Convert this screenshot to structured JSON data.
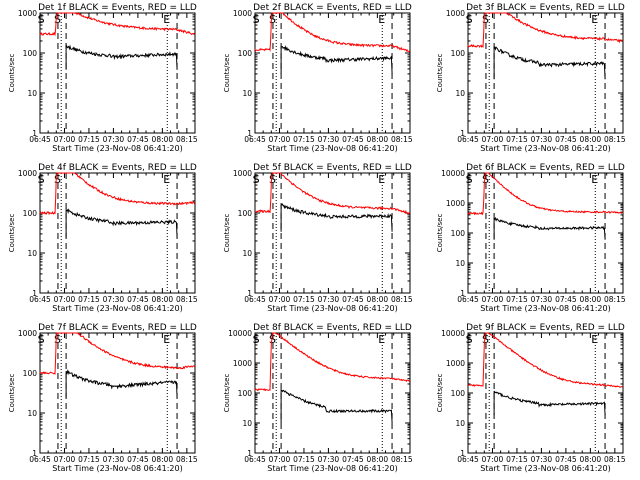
{
  "figure": {
    "background": "#ffffff"
  },
  "colors": {
    "events": "#000000",
    "lld": "#ff0000",
    "axes": "#000000"
  },
  "chart_data": [
    {
      "type": "line",
      "title": "Det 1f BLACK = Events, RED = LLD",
      "xlabel": "Start Time (23-Nov-08 06:41:20)",
      "ylabel": "Counts/sec",
      "xticks": [
        "06:45",
        "07:00",
        "07:15",
        "07:30",
        "07:45",
        "08:00",
        "08:15"
      ],
      "yticks": [
        "1",
        "10",
        "100",
        "1000"
      ],
      "ylim": [
        1,
        1000
      ],
      "yscale": "log",
      "markers": {
        "start": "S",
        "end": "E"
      },
      "lld": {
        "pre": 300,
        "jump": 1700,
        "decay_to": 380,
        "tau": 15,
        "post": 300
      },
      "events": {
        "start": 150,
        "end": 95,
        "dip": 80
      }
    },
    {
      "type": "line",
      "title": "Det 2f BLACK = Events, RED = LLD",
      "xlabel": "Start Time (23-Nov-08 06:41:20)",
      "ylabel": "Counts/sec",
      "xticks": [
        "06:45",
        "07:00",
        "07:15",
        "07:30",
        "07:45",
        "08:00",
        "08:15"
      ],
      "yticks": [
        "1",
        "10",
        "100",
        "1000"
      ],
      "ylim": [
        1,
        1000
      ],
      "yscale": "log",
      "markers": {
        "start": "S",
        "end": "E"
      },
      "lld": {
        "pre": 120,
        "jump": 1700,
        "decay_to": 150,
        "tau": 10,
        "post": 110
      },
      "events": {
        "start": 150,
        "end": 75,
        "dip": 65
      }
    },
    {
      "type": "line",
      "title": "Det 3f BLACK = Events, RED = LLD",
      "xlabel": "Start Time (23-Nov-08 06:41:20)",
      "ylabel": "Counts/sec",
      "xticks": [
        "06:45",
        "07:00",
        "07:15",
        "07:30",
        "07:45",
        "08:00",
        "08:15"
      ],
      "yticks": [
        "1",
        "10",
        "100",
        "1000"
      ],
      "ylim": [
        1,
        1000
      ],
      "yscale": "log",
      "markers": {
        "start": "S",
        "end": "E"
      },
      "lld": {
        "pre": 150,
        "jump": 2500,
        "decay_to": 220,
        "tau": 12,
        "post": 200
      },
      "events": {
        "start": 140,
        "end": 55,
        "dip": 50
      }
    },
    {
      "type": "line",
      "title": "Det 4f BLACK = Events, RED = LLD",
      "xlabel": "Start Time (23-Nov-08 06:41:20)",
      "ylabel": "Counts/sec",
      "xticks": [
        "06:45",
        "07:00",
        "07:15",
        "07:30",
        "07:45",
        "08:00",
        "08:15"
      ],
      "yticks": [
        "1",
        "10",
        "100",
        "1000"
      ],
      "ylim": [
        1,
        1000
      ],
      "yscale": "log",
      "markers": {
        "start": "S",
        "end": "E"
      },
      "lld": {
        "pre": 100,
        "jump": 2500,
        "decay_to": 170,
        "tau": 10,
        "post": 180
      },
      "events": {
        "start": 120,
        "end": 60,
        "dip": 55
      }
    },
    {
      "type": "line",
      "title": "Det 5f BLACK = Events, RED = LLD",
      "xlabel": "Start Time (23-Nov-08 06:41:20)",
      "ylabel": "Counts/sec",
      "xticks": [
        "06:45",
        "07:00",
        "07:15",
        "07:30",
        "07:45",
        "08:00",
        "08:15"
      ],
      "yticks": [
        "1",
        "10",
        "100",
        "1000"
      ],
      "ylim": [
        1,
        1000
      ],
      "yscale": "log",
      "markers": {
        "start": "S",
        "end": "E"
      },
      "lld": {
        "pre": 110,
        "jump": 1500,
        "decay_to": 130,
        "tau": 10,
        "post": 100
      },
      "events": {
        "start": 160,
        "end": 85,
        "dip": 80
      }
    },
    {
      "type": "line",
      "title": "Det 6f BLACK = Events, RED = LLD",
      "xlabel": "Start Time (23-Nov-08 06:41:20)",
      "ylabel": "Counts/sec",
      "xticks": [
        "06:45",
        "07:00",
        "07:15",
        "07:30",
        "07:45",
        "08:00",
        "08:15"
      ],
      "yticks": [
        "1",
        "10",
        "100",
        "1000",
        "10000"
      ],
      "ylim": [
        1,
        10000
      ],
      "yscale": "log",
      "markers": {
        "start": "S",
        "end": "E"
      },
      "lld": {
        "pre": 450,
        "jump": 12000,
        "decay_to": 500,
        "tau": 8,
        "post": 480
      },
      "events": {
        "start": 300,
        "end": 150,
        "dip": 140
      }
    },
    {
      "type": "line",
      "title": "Det 7f BLACK = Events, RED = LLD",
      "xlabel": "Start Time (23-Nov-08 06:41:20)",
      "ylabel": "Counts/sec",
      "xticks": [
        "06:45",
        "07:00",
        "07:15",
        "07:30",
        "07:45",
        "08:00",
        "08:15"
      ],
      "yticks": [
        "1",
        "10",
        "100",
        "1000"
      ],
      "ylim": [
        1,
        1000
      ],
      "yscale": "log",
      "markers": {
        "start": "S",
        "end": "E"
      },
      "lld": {
        "pre": 100,
        "jump": 2500,
        "decay_to": 130,
        "tau": 12,
        "post": 150
      },
      "events": {
        "start": 110,
        "end": 60,
        "dip": 45
      }
    },
    {
      "type": "line",
      "title": "Det 8f BLACK = Events, RED = LLD",
      "xlabel": "Start Time (23-Nov-08 06:41:20)",
      "ylabel": "Counts/sec",
      "xticks": [
        "06:45",
        "07:00",
        "07:15",
        "07:30",
        "07:45",
        "08:00",
        "08:15"
      ],
      "yticks": [
        "1",
        "10",
        "100",
        "1000",
        "10000"
      ],
      "ylim": [
        1,
        10000
      ],
      "yscale": "log",
      "markers": {
        "start": "S",
        "end": "E"
      },
      "lld": {
        "pre": 130,
        "jump": 12000,
        "decay_to": 300,
        "tau": 10,
        "post": 250
      },
      "events": {
        "start": 130,
        "end": 25,
        "dip": 25
      }
    },
    {
      "type": "line",
      "title": "Det 9f BLACK = Events, RED = LLD",
      "xlabel": "Start Time (23-Nov-08 06:41:20)",
      "ylabel": "Counts/sec",
      "xticks": [
        "06:45",
        "07:00",
        "07:15",
        "07:30",
        "07:45",
        "08:00",
        "08:15"
      ],
      "yticks": [
        "1",
        "10",
        "100",
        "1000",
        "10000"
      ],
      "ylim": [
        1,
        10000
      ],
      "yscale": "log",
      "markers": {
        "start": "S",
        "end": "E"
      },
      "lld": {
        "pre": 180,
        "jump": 12000,
        "decay_to": 180,
        "tau": 10,
        "post": 160
      },
      "events": {
        "start": 110,
        "end": 45,
        "dip": 40
      }
    }
  ]
}
